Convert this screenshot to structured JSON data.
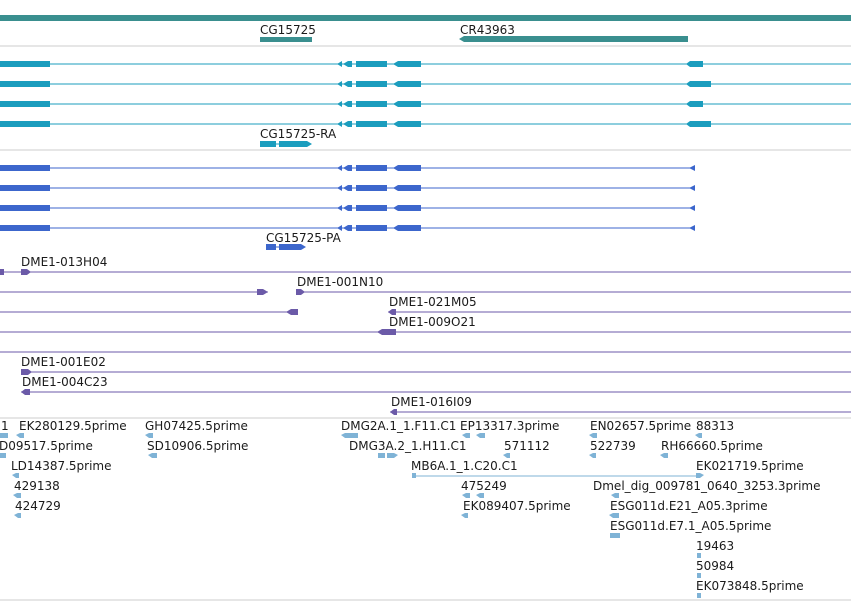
{
  "genes": [
    {
      "id": "g1",
      "label": "CG15725"
    },
    {
      "id": "g2",
      "label": "CR43963"
    }
  ],
  "transcripts": [
    {
      "id": "t1",
      "label": "CG15725-RA"
    },
    {
      "id": "t2",
      "label": "CG15725-PA"
    }
  ],
  "clones": [
    {
      "id": "c1",
      "label": "DME1-013H04"
    },
    {
      "id": "c2",
      "label": "DME1-001N10"
    },
    {
      "id": "c3",
      "label": "DME1-021M05"
    },
    {
      "id": "c4",
      "label": "DME1-009O21"
    },
    {
      "id": "c5",
      "label": "DME1-001E02"
    },
    {
      "id": "c6",
      "label": "DME1-004C23"
    },
    {
      "id": "c7",
      "label": "DME1-016I09"
    }
  ],
  "ests": [
    {
      "id": "e1",
      "label": "1"
    },
    {
      "id": "e2",
      "label": "EK280129.5prime"
    },
    {
      "id": "e3",
      "label": "GH07425.5prime"
    },
    {
      "id": "e4",
      "label": "DMG2A.1_1.F11.C1"
    },
    {
      "id": "e5",
      "label": "EP13317.3prime"
    },
    {
      "id": "e6",
      "label": "EN02657.5prime"
    },
    {
      "id": "e7",
      "label": "88313"
    },
    {
      "id": "e8",
      "label": "D09517.5prime"
    },
    {
      "id": "e9",
      "label": "SD10906.5prime"
    },
    {
      "id": "e10",
      "label": "DMG3A.2_1.H11.C1"
    },
    {
      "id": "e11",
      "label": "571112"
    },
    {
      "id": "e12",
      "label": "522739"
    },
    {
      "id": "e13",
      "label": "RH66660.5prime"
    },
    {
      "id": "e14",
      "label": "LD14387.5prime"
    },
    {
      "id": "e15",
      "label": "MB6A.1_1.C20.C1"
    },
    {
      "id": "e16",
      "label": "EK021719.5prime"
    },
    {
      "id": "e17",
      "label": "429138"
    },
    {
      "id": "e18",
      "label": "475249"
    },
    {
      "id": "e19",
      "label": "Dmel_dig_009781_0640_3253.3prime"
    },
    {
      "id": "e20",
      "label": "424729"
    },
    {
      "id": "e21",
      "label": "EK089407.5prime"
    },
    {
      "id": "e22",
      "label": "ESG011d.E21_A05.3prime"
    },
    {
      "id": "e23",
      "label": "ESG011d.E7.1_A05.5prime"
    },
    {
      "id": "e24",
      "label": "19463"
    },
    {
      "id": "e25",
      "label": "50984"
    },
    {
      "id": "e26",
      "label": "EK073848.5prime"
    }
  ],
  "colors": {
    "gene_track": "#3a8f8f",
    "rna": "#1b9dbe",
    "protein": "#3c66cc",
    "clone": "#6b5aa8",
    "est": "#7fb3d6",
    "separator": "#c8c8c8",
    "text": "#1a1a1a"
  }
}
